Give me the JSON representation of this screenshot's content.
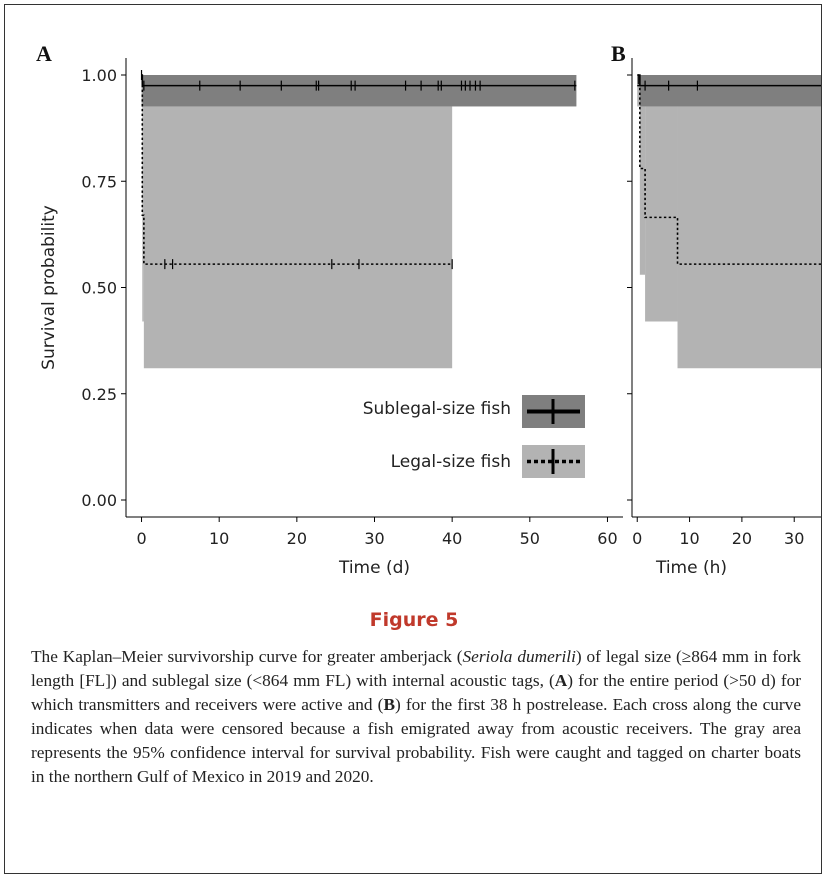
{
  "figure": {
    "title": "Figure 5",
    "caption": {
      "p1": "The Kaplan–Meier survivorship curve for greater amberjack (",
      "species": "Seriola dumerili",
      "p2": ") of legal size (≥864 mm in fork length [FL]) and sublegal size (<864 mm FL) with internal acoustic tags, (",
      "labelA": "A",
      "p3": ") for the entire period (>50 d) for which transmitters and receivers were active and (",
      "labelB": "B",
      "p4": ") for the first 38 h postrelease. Each cross along the curve indicates when data were censored because a fish emigrated away from acoustic receivers. The gray area represents the 95% confidence interval for survival probability. Fish were caught and tagged on charter boats in the northern Gulf of Mexico in 2019 and 2020."
    }
  },
  "colors": {
    "sublegal_band": "#7f7f7f",
    "legal_band": "#b3b3b3",
    "line": "#000000",
    "title": "#c0392b"
  },
  "chart_data": [
    {
      "panel_label": "A",
      "type": "line",
      "subtype": "kaplan-meier step",
      "ylabel": "Survival probability",
      "xlabel": "Time (d)",
      "xlim": [
        -2,
        62
      ],
      "ylim": [
        -0.04,
        1.04
      ],
      "xticks": [
        0,
        10,
        20,
        30,
        40,
        50,
        60
      ],
      "yticks": [
        0.0,
        0.25,
        0.5,
        0.75,
        1.0
      ],
      "ytick_labels": [
        "0.00",
        "0.25",
        "0.50",
        "0.75",
        "1.00"
      ],
      "grid": false,
      "legend": {
        "position": "bottom-right",
        "entries": [
          {
            "name": "Sublegal-size fish",
            "line": "solid",
            "band": "sublegal_band"
          },
          {
            "name": "Legal-size fish",
            "line": "dotted",
            "band": "legal_band"
          }
        ]
      },
      "series": [
        {
          "name": "Sublegal-size fish",
          "line": "solid",
          "band": "sublegal_band",
          "steps": [
            [
              0,
              1.0
            ],
            [
              0.1,
              0.975
            ],
            [
              56,
              0.975
            ]
          ],
          "ci": [
            [
              0,
              1.0,
              1.0
            ],
            [
              0.1,
              0.926,
              1.0
            ],
            [
              56,
              0.926,
              1.0
            ]
          ],
          "censored": [
            [
              0,
              1.0
            ],
            [
              0.3,
              0.975
            ],
            [
              7.5,
              0.975
            ],
            [
              12.7,
              0.975
            ],
            [
              18,
              0.975
            ],
            [
              22.5,
              0.975
            ],
            [
              22.8,
              0.975
            ],
            [
              27,
              0.975
            ],
            [
              27.5,
              0.975
            ],
            [
              34,
              0.975
            ],
            [
              36,
              0.975
            ],
            [
              38.2,
              0.975
            ],
            [
              38.6,
              0.975
            ],
            [
              41.2,
              0.975
            ],
            [
              41.7,
              0.975
            ],
            [
              42.3,
              0.975
            ],
            [
              43,
              0.975
            ],
            [
              43.6,
              0.975
            ],
            [
              55.8,
              0.975
            ]
          ]
        },
        {
          "name": "Legal-size fish",
          "line": "dotted",
          "band": "legal_band",
          "steps": [
            [
              0,
              0.975
            ],
            [
              0.1,
              0.67
            ],
            [
              0.3,
              0.555
            ],
            [
              40,
              0.555
            ]
          ],
          "ci": [
            [
              0,
              0.926,
              1.0
            ],
            [
              0.1,
              0.42,
              0.926
            ],
            [
              0.3,
              0.31,
              0.926
            ],
            [
              40,
              0.31,
              0.926
            ]
          ],
          "censored": [
            [
              3,
              0.555
            ],
            [
              4,
              0.555
            ],
            [
              24.5,
              0.555
            ],
            [
              28,
              0.555
            ],
            [
              40,
              0.555
            ]
          ]
        }
      ]
    },
    {
      "panel_label": "B",
      "type": "line",
      "subtype": "kaplan-meier step",
      "xlabel": "Time (h)",
      "xlim": [
        -1,
        35.5
      ],
      "ylim": [
        -0.04,
        1.04
      ],
      "xticks": [
        0,
        10,
        20,
        30
      ],
      "yticks": [
        0.0,
        0.25,
        0.5,
        0.75,
        1.0
      ],
      "grid": false,
      "series": [
        {
          "name": "Sublegal-size fish",
          "line": "solid",
          "band": "sublegal_band",
          "steps": [
            [
              0,
              1.0
            ],
            [
              0.5,
              0.975
            ],
            [
              35.5,
              0.975
            ]
          ],
          "ci": [
            [
              0,
              1.0,
              1.0
            ],
            [
              0.5,
              0.926,
              1.0
            ],
            [
              35.5,
              0.926,
              1.0
            ]
          ],
          "censored": [
            [
              0.2,
              0.99
            ],
            [
              1.5,
              0.975
            ],
            [
              6,
              0.975
            ],
            [
              11.5,
              0.975
            ]
          ]
        },
        {
          "name": "Legal-size fish",
          "line": "dotted",
          "band": "legal_band",
          "steps": [
            [
              0,
              0.975
            ],
            [
              0.5,
              0.78
            ],
            [
              1.5,
              0.665
            ],
            [
              7.7,
              0.555
            ],
            [
              35.5,
              0.555
            ]
          ],
          "ci": [
            [
              0,
              0.926,
              1.0
            ],
            [
              0.5,
              0.53,
              0.926
            ],
            [
              1.5,
              0.42,
              0.926
            ],
            [
              7.7,
              0.31,
              0.926
            ],
            [
              35.5,
              0.31,
              0.926
            ]
          ],
          "censored": []
        }
      ]
    }
  ]
}
